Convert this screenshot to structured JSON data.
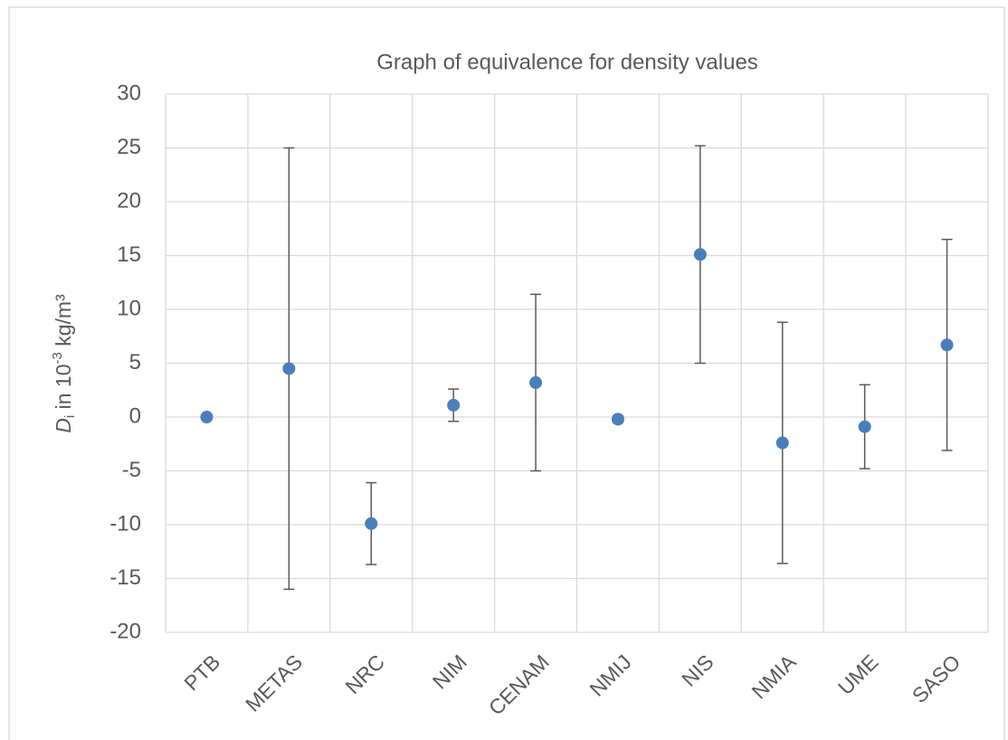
{
  "chart_data": {
    "type": "errorbar",
    "title": "Graph of equivalence for density values",
    "y_label_parts": [
      "D",
      "i",
      " in 10",
      "-3",
      " kg/m³"
    ],
    "categories": [
      "PTB",
      "METAS",
      "NRC",
      "NIM",
      "CENAM",
      "NMIJ",
      "NIS",
      "NMIA",
      "UME",
      "SASO"
    ],
    "values": [
      0,
      4.5,
      -9.9,
      1.1,
      3.2,
      -0.2,
      15.1,
      -2.4,
      -0.9,
      6.7
    ],
    "errors": [
      0.2,
      20.5,
      3.8,
      1.5,
      8.2,
      0.3,
      10.1,
      11.2,
      3.9,
      9.8
    ],
    "color": "#4a7ebb",
    "error_color": "#595959",
    "ylim": [
      -20,
      30
    ],
    "yticks": [
      -20,
      -15,
      -10,
      -5,
      0,
      5,
      10,
      15,
      20,
      25,
      30
    ],
    "grid": true
  }
}
